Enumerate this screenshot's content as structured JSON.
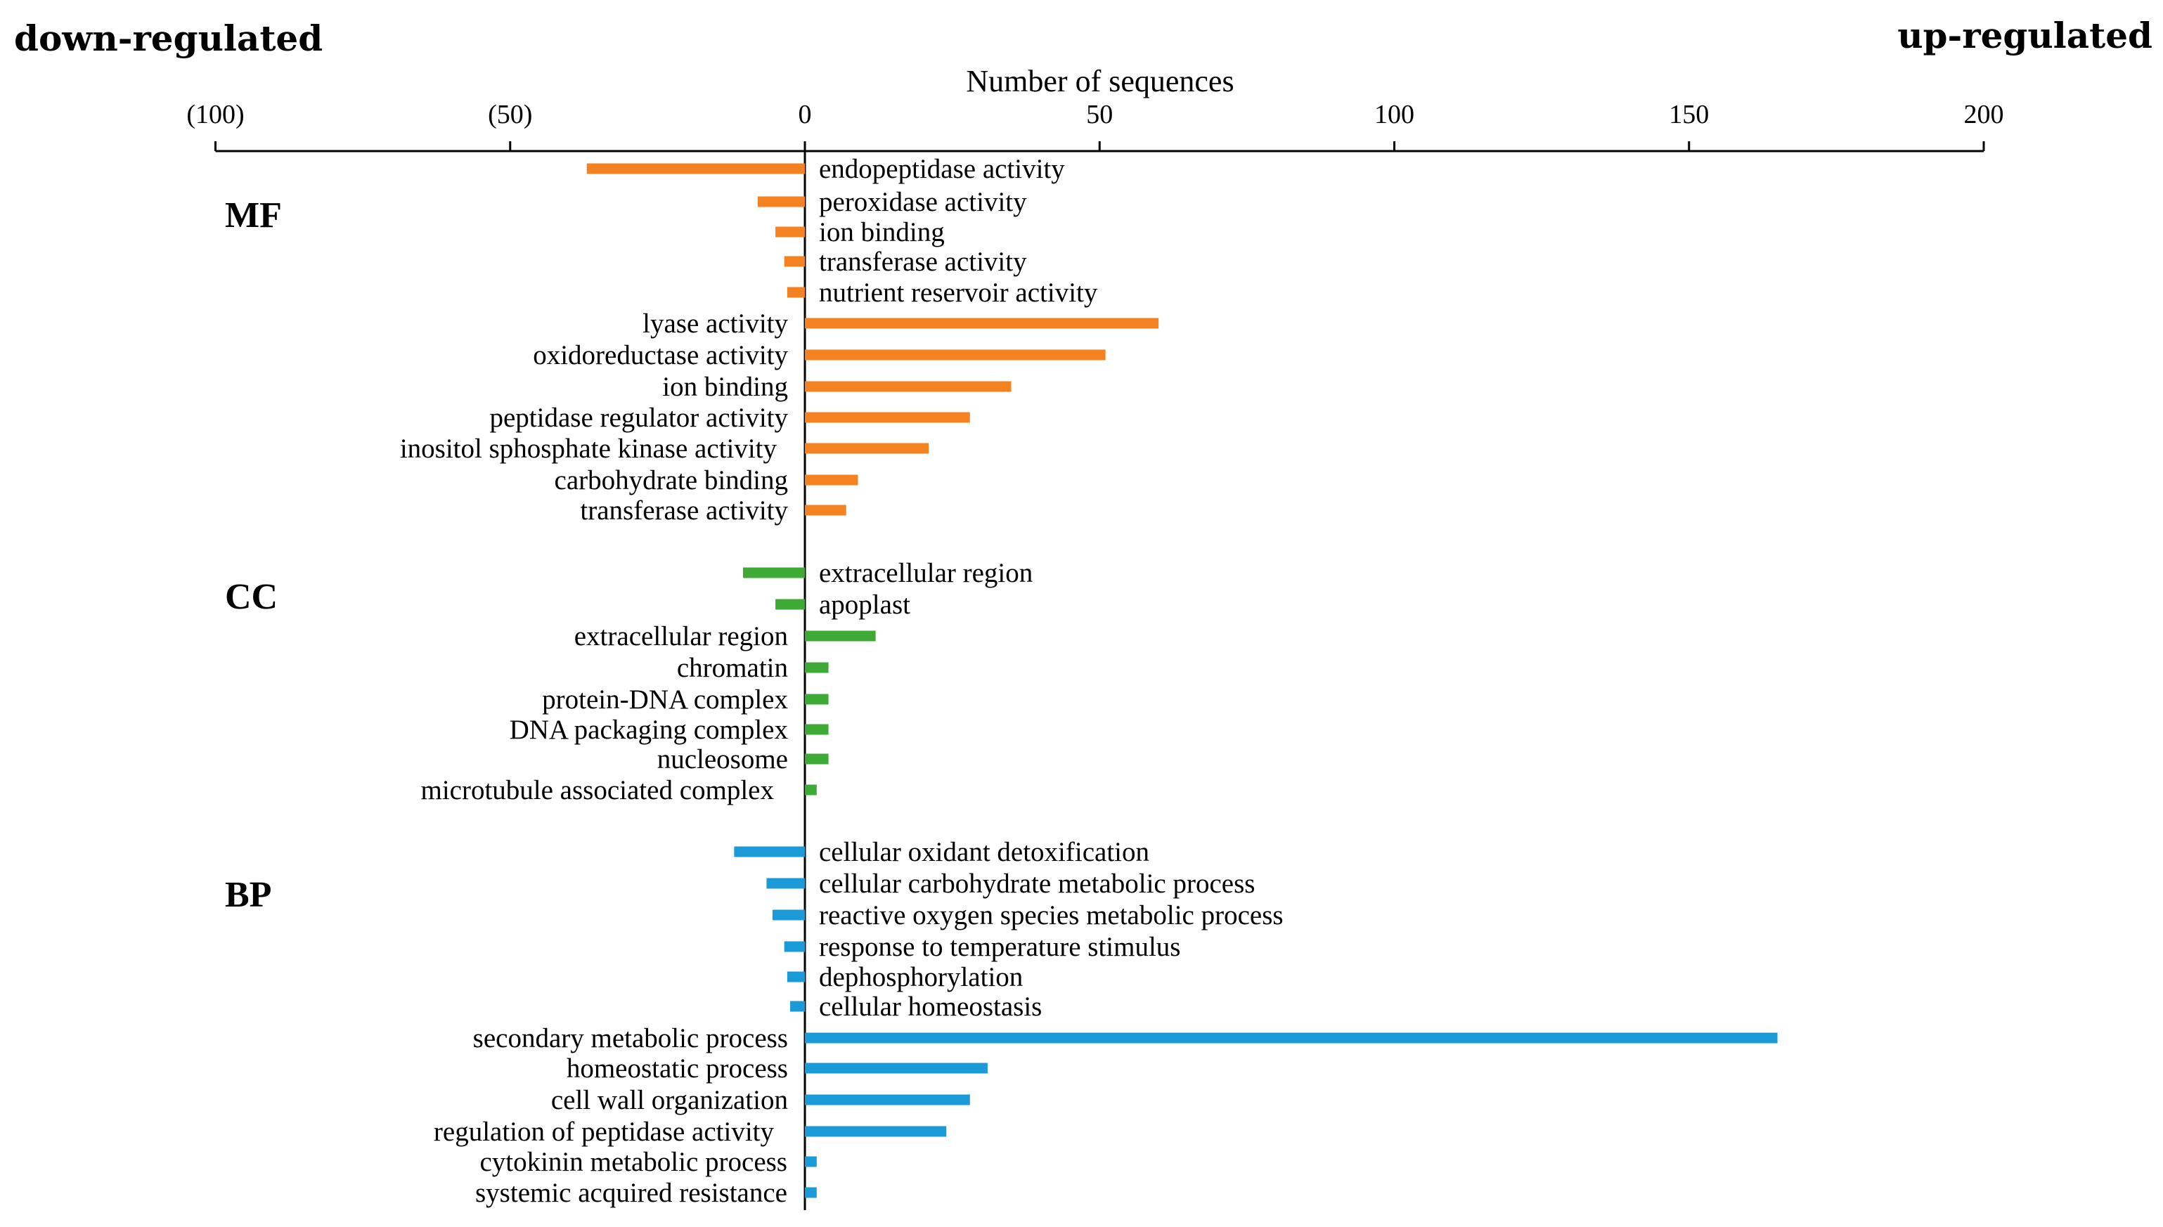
{
  "chart_data": {
    "type": "bar",
    "orientation": "horizontal",
    "left_label": "down-regulated",
    "right_label": "up-regulated",
    "xlabel": "Number of sequences",
    "xlim": [
      -100,
      200
    ],
    "xticks": [
      -100,
      -50,
      0,
      50,
      100,
      150,
      200
    ],
    "xtick_labels": [
      "(100)",
      "(50)",
      "0",
      "50",
      "100",
      "150",
      "200"
    ],
    "colors": {
      "MF": "#F58220",
      "CC": "#3DAA35",
      "BP": "#1A9AD6"
    },
    "groups": [
      {
        "name": "MF",
        "items": [
          {
            "label": "endopeptidase activity",
            "value": -37
          },
          {
            "label": "peroxidase activity",
            "value": -8
          },
          {
            "label": "ion binding",
            "value": -5
          },
          {
            "label": "transferase activity",
            "value": -3.5
          },
          {
            "label": "nutrient reservoir activity",
            "value": -3
          },
          {
            "label": "lyase activity",
            "value": 60
          },
          {
            "label": "oxidoreductase activity",
            "value": 51
          },
          {
            "label": "ion binding",
            "value": 35
          },
          {
            "label": "peptidase regulator activity",
            "value": 28
          },
          {
            "label": "inositol sphosphate kinase activity",
            "value": 21
          },
          {
            "label": "carbohydrate binding",
            "value": 9
          },
          {
            "label": "transferase activity",
            "value": 7
          }
        ]
      },
      {
        "name": "CC",
        "items": [
          {
            "label": "extracellular region",
            "value": -10.5
          },
          {
            "label": "apoplast",
            "value": -5
          },
          {
            "label": "extracellular region",
            "value": 12
          },
          {
            "label": "chromatin",
            "value": 4
          },
          {
            "label": "protein-DNA complex",
            "value": 4
          },
          {
            "label": "DNA packaging complex",
            "value": 4
          },
          {
            "label": "nucleosome",
            "value": 4
          },
          {
            "label": "microtubule associated complex",
            "value": 2
          }
        ]
      },
      {
        "name": "BP",
        "items": [
          {
            "label": "cellular oxidant detoxification",
            "value": -12
          },
          {
            "label": "cellular carbohydrate metabolic process",
            "value": -6.5
          },
          {
            "label": "reactive oxygen species metabolic process",
            "value": -5.5
          },
          {
            "label": "response to temperature stimulus",
            "value": -3.5
          },
          {
            "label": "dephosphorylation",
            "value": -3
          },
          {
            "label": "cellular homeostasis",
            "value": -2.5
          },
          {
            "label": "secondary metabolic process",
            "value": 165
          },
          {
            "label": "homeostatic process",
            "value": 31
          },
          {
            "label": "cell wall organization",
            "value": 28
          },
          {
            "label": "regulation of peptidase activity",
            "value": 24
          },
          {
            "label": "cytokinin metabolic process",
            "value": 2
          },
          {
            "label": "systemic acquired resistance",
            "value": 2
          }
        ]
      }
    ]
  }
}
